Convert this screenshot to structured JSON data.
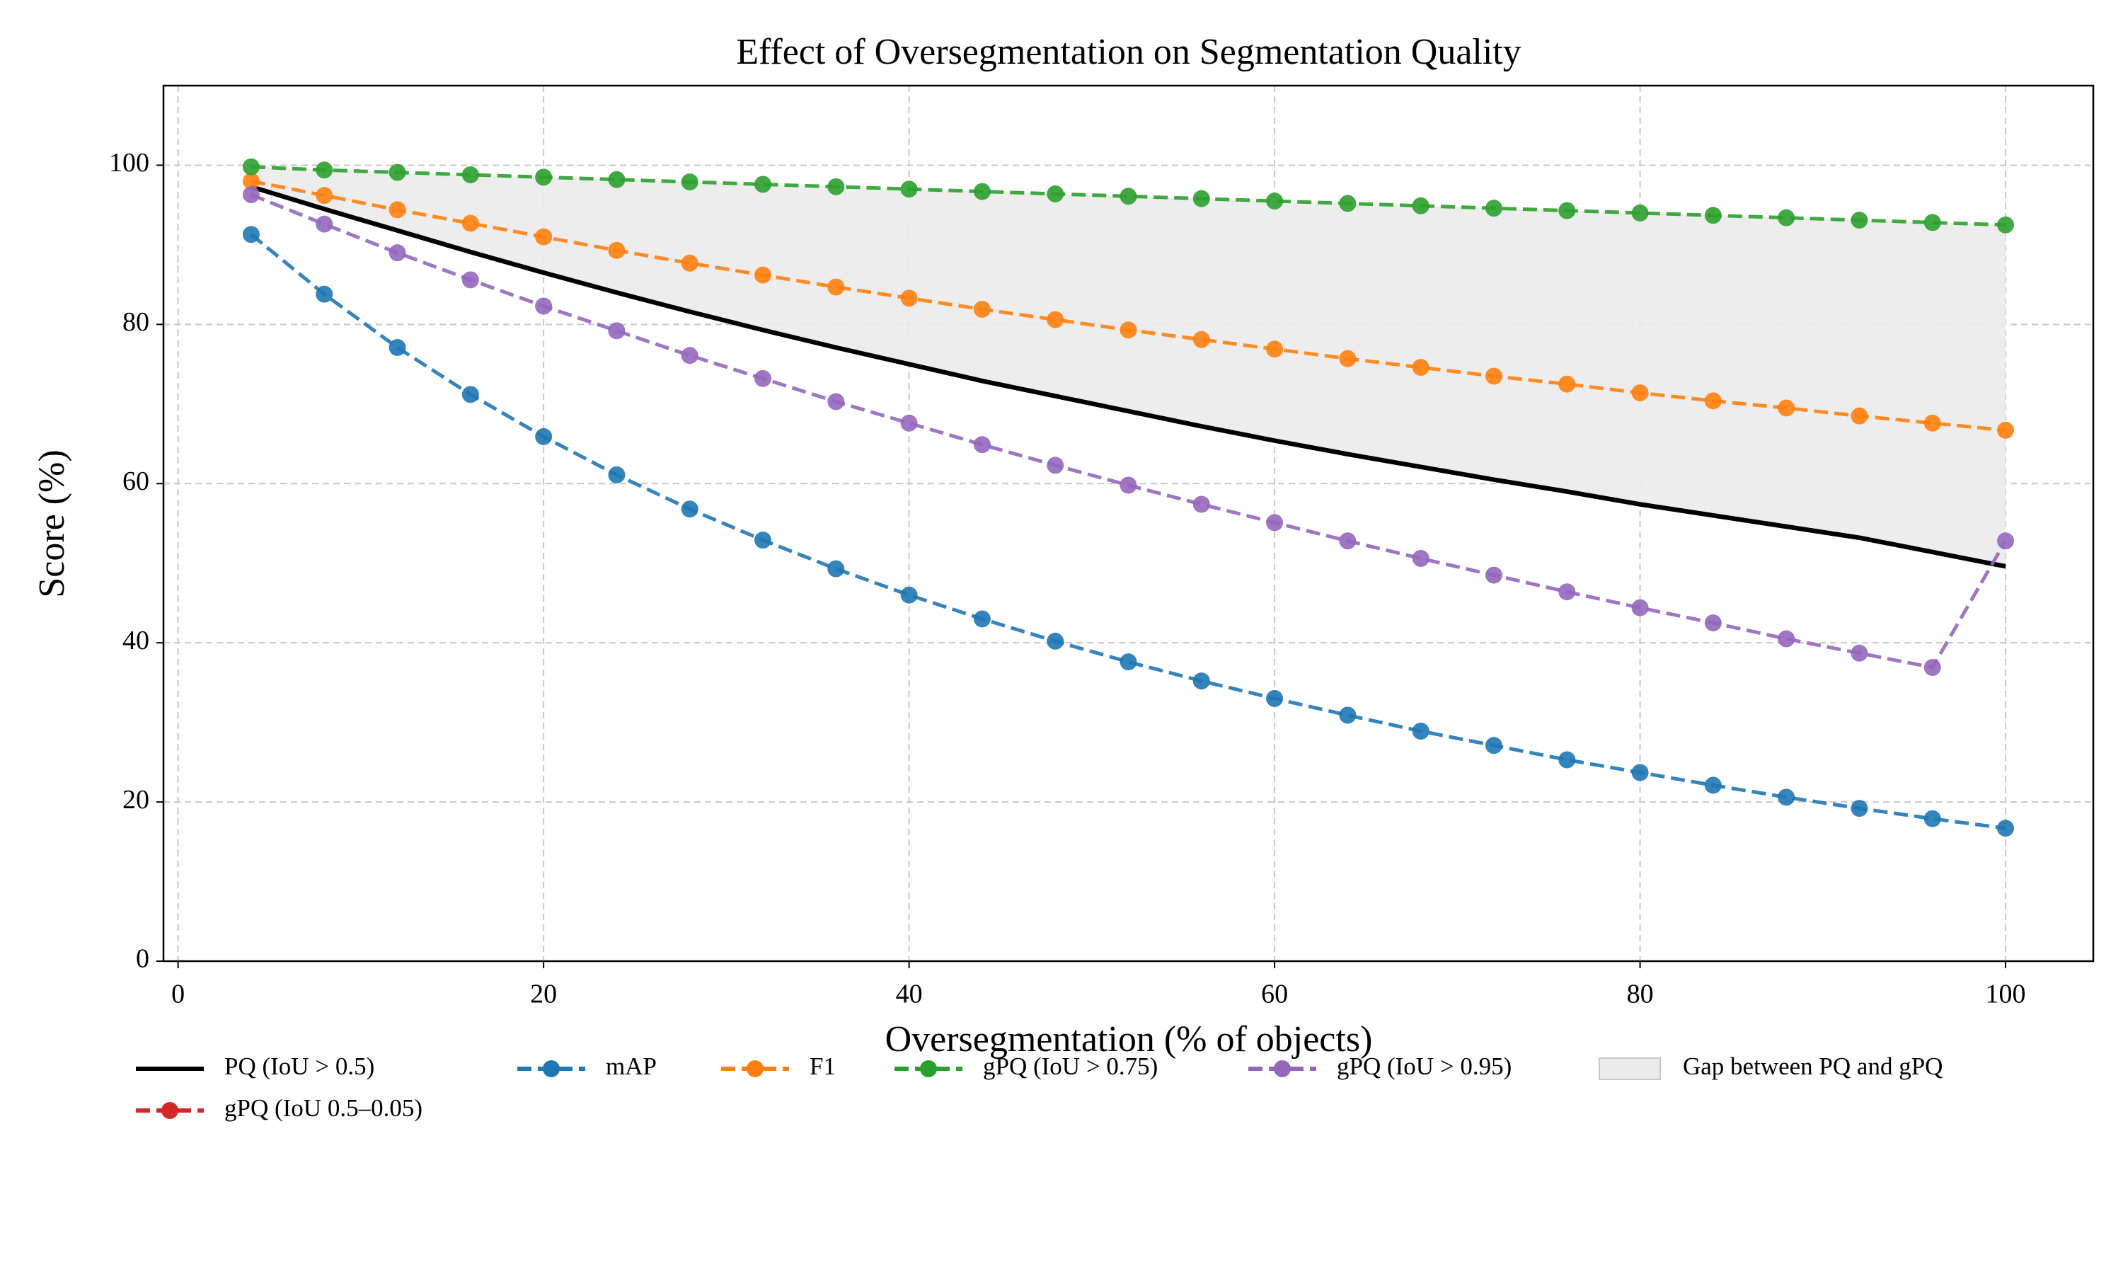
{
  "chart_data": {
    "type": "line",
    "title": "Effect of Oversegmentation on Segmentation Quality",
    "xlabel": "Oversegmentation (% of objects)",
    "ylabel": "Score (%)",
    "x": [
      4,
      8,
      12,
      16,
      20,
      24,
      28,
      32,
      36,
      40,
      44,
      48,
      52,
      56,
      60,
      64,
      68,
      72,
      76,
      80,
      84,
      88,
      92,
      96,
      100
    ],
    "series": [
      {
        "name": "PQ (IoU > 0.5)",
        "color": "#000000",
        "style": "solid",
        "markers": false,
        "values": [
          97.3,
          94.5,
          91.8,
          89.1,
          86.5,
          84.0,
          81.6,
          79.3,
          77.1,
          75.0,
          72.9,
          71.0,
          69.1,
          67.2,
          65.4,
          63.7,
          62.1,
          60.5,
          59.0,
          57.4,
          56.0,
          54.6,
          53.2,
          51.4,
          49.6
        ]
      },
      {
        "name": "gPQ (IoU 0.5–0.05)",
        "color": "#d62728",
        "style": "dashed",
        "markers": true,
        "values": [
          null,
          null,
          null,
          null,
          null,
          null,
          null,
          null,
          null,
          null,
          null,
          null,
          null,
          null,
          null,
          null,
          null,
          null,
          null,
          null,
          null,
          null,
          null,
          null,
          null
        ]
      },
      {
        "name": "mAP",
        "color": "#1f77b4",
        "style": "dashed",
        "markers": true,
        "values": [
          91.3,
          83.8,
          77.1,
          71.2,
          65.9,
          61.1,
          56.8,
          52.9,
          49.3,
          46.0,
          43.0,
          40.2,
          37.6,
          35.2,
          33.0,
          30.9,
          28.9,
          27.1,
          25.3,
          23.7,
          22.1,
          20.6,
          19.2,
          17.9,
          16.7
        ]
      },
      {
        "name": "F1",
        "color": "#ff7f0e",
        "style": "dashed",
        "markers": true,
        "values": [
          98.0,
          96.2,
          94.4,
          92.7,
          91.0,
          89.3,
          87.7,
          86.2,
          84.7,
          83.3,
          81.9,
          80.6,
          79.3,
          78.1,
          76.9,
          75.7,
          74.6,
          73.5,
          72.5,
          71.4,
          70.4,
          69.5,
          68.5,
          67.6,
          66.7
        ]
      },
      {
        "name": "gPQ (IoU > 0.75)",
        "color": "#2ca02c",
        "style": "dashed",
        "markers": true,
        "values": [
          99.8,
          99.4,
          99.1,
          98.8,
          98.5,
          98.2,
          97.9,
          97.6,
          97.3,
          97.0,
          96.7,
          96.4,
          96.1,
          95.8,
          95.5,
          95.2,
          94.9,
          94.6,
          94.3,
          94.0,
          93.7,
          93.4,
          93.1,
          92.8,
          92.5
        ]
      },
      {
        "name": "gPQ (IoU > 0.95)",
        "color": "#9467bd",
        "style": "dashed",
        "markers": true,
        "values": [
          96.3,
          92.6,
          89.0,
          85.6,
          82.3,
          79.2,
          76.1,
          73.2,
          70.3,
          67.6,
          64.9,
          62.3,
          59.8,
          57.4,
          55.1,
          52.8,
          50.6,
          48.5,
          46.4,
          44.4,
          42.5,
          40.5,
          38.7,
          36.9,
          52.8
        ]
      }
    ],
    "fill": {
      "name": "Gap between PQ and gPQ",
      "color": "#ebebeb"
    },
    "xlim": [
      -0.8,
      104.8
    ],
    "xticks": [
      0,
      20,
      40,
      60,
      80,
      100
    ],
    "ylim": [
      0,
      110
    ],
    "yticks": [
      0,
      20,
      40,
      60,
      80,
      100
    ],
    "grid": true,
    "legend": "below"
  }
}
